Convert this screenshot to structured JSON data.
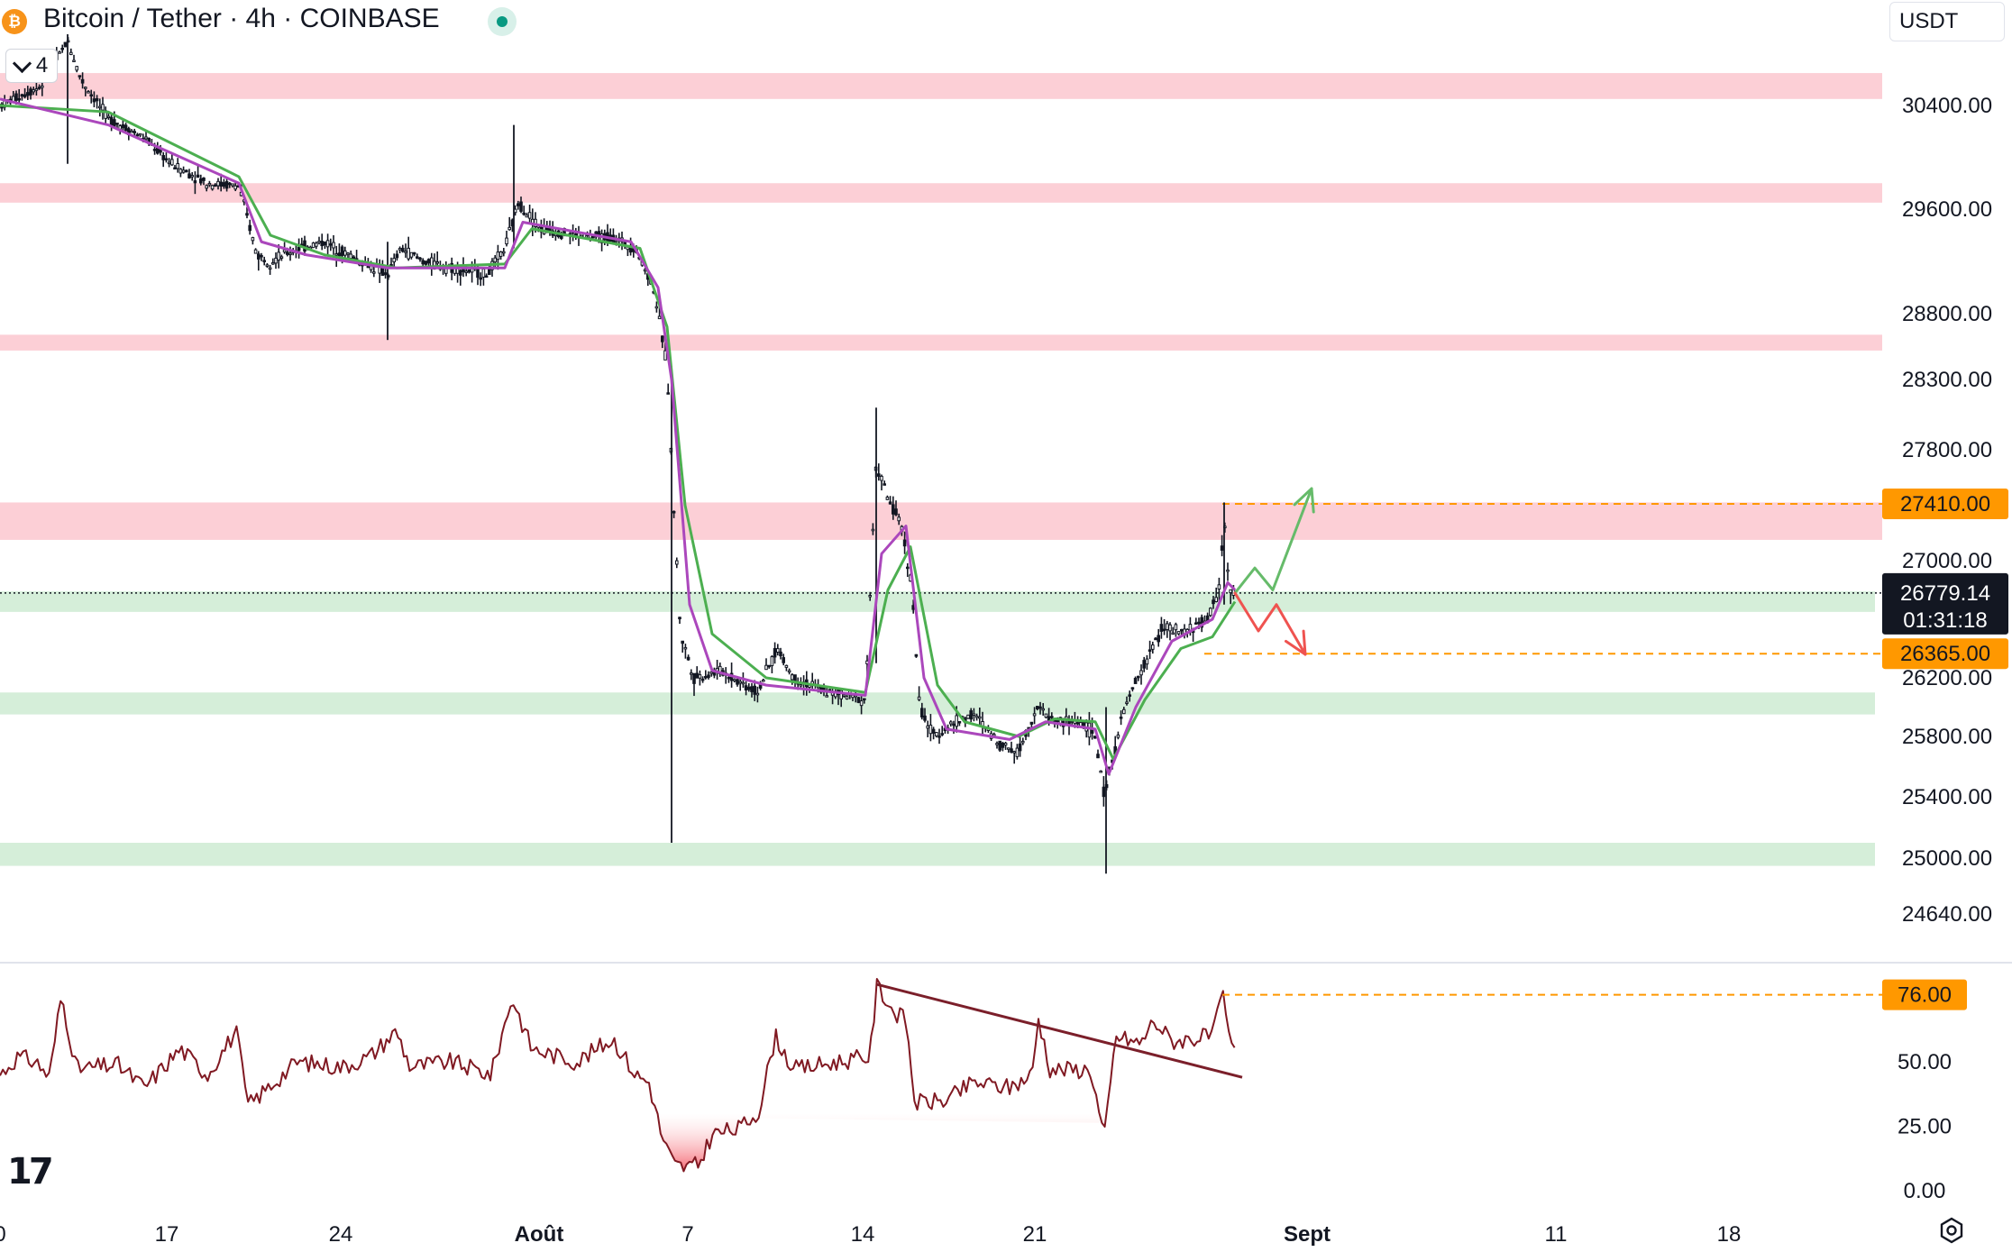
{
  "header": {
    "title": "Bitcoin / Tether · 4h · COINBASE",
    "collapse_count": "4",
    "currency": "USDT",
    "coin_symbol": "₿"
  },
  "colors": {
    "candle": "#131722",
    "ema_fast": "#ab47bc",
    "ema_slow": "#4caf50",
    "resistance_zone": "#fccfd6",
    "support_zone": "#d5eed9",
    "price_tag": "#ff9800",
    "rsi_line": "#801922",
    "rsi_trendline": "#7b1f2a",
    "arrow_up": "#66bb6a",
    "arrow_down": "#ef5350"
  },
  "chart_data": [
    {
      "type": "candlestick",
      "title": "",
      "ylim": [
        24400,
        30800
      ],
      "y_axis_ticks": [
        "30400.00",
        "29600.00",
        "28800.00",
        "28300.00",
        "27800.00",
        "27000.00",
        "26200.00",
        "25800.00",
        "25400.00",
        "25000.00",
        "24640.00"
      ],
      "y_tick_values": [
        30400,
        29600,
        28800,
        28300,
        27800,
        27000,
        26200,
        25800,
        25400,
        25000,
        24640
      ],
      "x_axis_labels": [
        "0",
        "17",
        "24",
        "Août",
        "7",
        "14",
        "21",
        "Sept",
        "11",
        "18"
      ],
      "x_label_bold": [
        false,
        false,
        false,
        true,
        false,
        false,
        false,
        true,
        false,
        false
      ],
      "series_keypoints": [
        [
          0,
          30400
        ],
        [
          45,
          30550
        ],
        [
          75,
          30900
        ],
        [
          90,
          30600
        ],
        [
          120,
          30300
        ],
        [
          160,
          30150
        ],
        [
          190,
          29950
        ],
        [
          230,
          29800
        ],
        [
          265,
          29780
        ],
        [
          285,
          29250
        ],
        [
          300,
          29200
        ],
        [
          330,
          29300
        ],
        [
          360,
          29350
        ],
        [
          400,
          29200
        ],
        [
          430,
          29100
        ],
        [
          445,
          29300
        ],
        [
          470,
          29200
        ],
        [
          500,
          29150
        ],
        [
          540,
          29100
        ],
        [
          560,
          29300
        ],
        [
          575,
          29650
        ],
        [
          600,
          29450
        ],
        [
          640,
          29400
        ],
        [
          680,
          29380
        ],
        [
          705,
          29300
        ],
        [
          725,
          29000
        ],
        [
          740,
          28400
        ],
        [
          748,
          27300
        ],
        [
          755,
          26500
        ],
        [
          770,
          26200
        ],
        [
          800,
          26250
        ],
        [
          840,
          26100
        ],
        [
          862,
          26400
        ],
        [
          880,
          26200
        ],
        [
          920,
          26100
        ],
        [
          960,
          26050
        ],
        [
          972,
          27700
        ],
        [
          985,
          27450
        ],
        [
          1000,
          27250
        ],
        [
          1012,
          26800
        ],
        [
          1020,
          26000
        ],
        [
          1035,
          25800
        ],
        [
          1060,
          25900
        ],
        [
          1080,
          25950
        ],
        [
          1110,
          25750
        ],
        [
          1130,
          25700
        ],
        [
          1150,
          26000
        ],
        [
          1170,
          25900
        ],
        [
          1200,
          25900
        ],
        [
          1215,
          25800
        ],
        [
          1225,
          25400
        ],
        [
          1232,
          25600
        ],
        [
          1248,
          26000
        ],
        [
          1270,
          26300
        ],
        [
          1290,
          26550
        ],
        [
          1310,
          26500
        ],
        [
          1340,
          26600
        ],
        [
          1352,
          26800
        ],
        [
          1358,
          27300
        ],
        [
          1364,
          26800
        ],
        [
          1370,
          26779
        ]
      ],
      "ema_fast_keypoints": [
        [
          0,
          30450
        ],
        [
          120,
          30250
        ],
        [
          265,
          29800
        ],
        [
          290,
          29350
        ],
        [
          340,
          29250
        ],
        [
          430,
          29150
        ],
        [
          560,
          29150
        ],
        [
          580,
          29500
        ],
        [
          700,
          29350
        ],
        [
          730,
          29000
        ],
        [
          745,
          28300
        ],
        [
          765,
          26700
        ],
        [
          790,
          26250
        ],
        [
          850,
          26150
        ],
        [
          960,
          26080
        ],
        [
          978,
          27050
        ],
        [
          1005,
          27250
        ],
        [
          1025,
          26200
        ],
        [
          1050,
          25850
        ],
        [
          1120,
          25780
        ],
        [
          1160,
          25900
        ],
        [
          1215,
          25850
        ],
        [
          1230,
          25550
        ],
        [
          1260,
          26000
        ],
        [
          1300,
          26450
        ],
        [
          1345,
          26600
        ],
        [
          1362,
          26850
        ],
        [
          1370,
          26800
        ]
      ],
      "ema_slow_keypoints": [
        [
          0,
          30400
        ],
        [
          120,
          30350
        ],
        [
          265,
          29850
        ],
        [
          300,
          29400
        ],
        [
          360,
          29250
        ],
        [
          440,
          29150
        ],
        [
          560,
          29180
        ],
        [
          590,
          29450
        ],
        [
          710,
          29300
        ],
        [
          740,
          28700
        ],
        [
          760,
          27400
        ],
        [
          790,
          26500
        ],
        [
          850,
          26200
        ],
        [
          960,
          26100
        ],
        [
          985,
          26800
        ],
        [
          1010,
          27100
        ],
        [
          1040,
          26150
        ],
        [
          1070,
          25900
        ],
        [
          1130,
          25800
        ],
        [
          1170,
          25920
        ],
        [
          1215,
          25900
        ],
        [
          1235,
          25650
        ],
        [
          1270,
          26050
        ],
        [
          1310,
          26400
        ],
        [
          1345,
          26480
        ],
        [
          1370,
          26720
        ]
      ],
      "resistance_zones": [
        [
          30450,
          30650
        ],
        [
          29650,
          29800
        ],
        [
          28520,
          28640
        ],
        [
          27150,
          27420
        ]
      ],
      "support_zones": [
        [
          26650,
          26790
        ],
        [
          25950,
          26100
        ],
        [
          24950,
          25100
        ]
      ],
      "level_labels": {
        "upper": "27410.00",
        "lower": "26365.00"
      },
      "level_values": {
        "upper": 27410,
        "lower": 26365
      },
      "last_price": "26779.14",
      "last_price_value": 26779.14,
      "countdown": "01:31:18",
      "scenario_up": [
        [
          1370,
          26779
        ],
        [
          1392,
          26950
        ],
        [
          1412,
          26800
        ],
        [
          1455,
          27520
        ]
      ],
      "scenario_down": [
        [
          1370,
          26779
        ],
        [
          1396,
          26520
        ],
        [
          1416,
          26700
        ],
        [
          1448,
          26360
        ]
      ]
    },
    {
      "type": "line",
      "title": "",
      "ylim": [
        0,
        85
      ],
      "y_axis_ticks": [
        "50.00",
        "25.00",
        "0.00"
      ],
      "y_tick_values": [
        50,
        25,
        0
      ],
      "level_label": "76.00",
      "level_value": 76,
      "series_keypoints": [
        [
          0,
          45
        ],
        [
          20,
          52
        ],
        [
          40,
          50
        ],
        [
          55,
          44
        ],
        [
          68,
          76
        ],
        [
          85,
          47
        ],
        [
          130,
          49
        ],
        [
          160,
          40
        ],
        [
          200,
          55
        ],
        [
          230,
          45
        ],
        [
          262,
          62
        ],
        [
          275,
          33
        ],
        [
          330,
          50
        ],
        [
          380,
          48
        ],
        [
          410,
          52
        ],
        [
          440,
          62
        ],
        [
          455,
          48
        ],
        [
          500,
          50
        ],
        [
          545,
          45
        ],
        [
          568,
          75
        ],
        [
          590,
          55
        ],
        [
          640,
          50
        ],
        [
          680,
          59
        ],
        [
          705,
          45
        ],
        [
          720,
          42
        ],
        [
          735,
          20
        ],
        [
          748,
          10
        ],
        [
          760,
          9
        ],
        [
          775,
          10
        ],
        [
          790,
          22
        ],
        [
          820,
          24
        ],
        [
          842,
          31
        ],
        [
          860,
          60
        ],
        [
          880,
          47
        ],
        [
          930,
          50
        ],
        [
          965,
          52
        ],
        [
          973,
          80
        ],
        [
          990,
          70
        ],
        [
          1005,
          66
        ],
        [
          1015,
          34
        ],
        [
          1050,
          35
        ],
        [
          1080,
          42
        ],
        [
          1120,
          40
        ],
        [
          1145,
          45
        ],
        [
          1152,
          67
        ],
        [
          1165,
          47
        ],
        [
          1210,
          47
        ],
        [
          1225,
          20
        ],
        [
          1238,
          60
        ],
        [
          1265,
          57
        ],
        [
          1280,
          66
        ],
        [
          1300,
          58
        ],
        [
          1345,
          60
        ],
        [
          1357,
          76
        ],
        [
          1365,
          55
        ],
        [
          1370,
          56
        ]
      ],
      "trendline": [
        [
          973,
          80
        ],
        [
          1378,
          44
        ]
      ]
    }
  ]
}
